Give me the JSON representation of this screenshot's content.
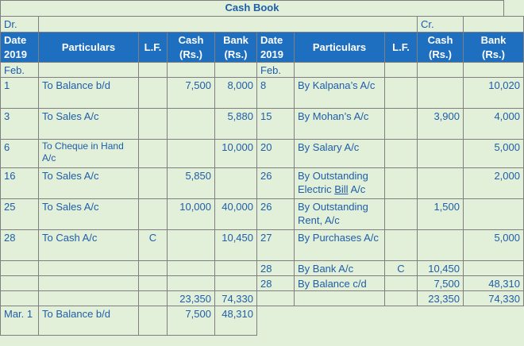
{
  "title": "Cash Book",
  "dr": "Dr.",
  "cr": "Cr.",
  "headers": {
    "date": "Date",
    "year": "2019",
    "particulars": "Particulars",
    "lf": "L.F.",
    "cash": "Cash",
    "bank": "Bank",
    "unit": "(Rs.)"
  },
  "month_start": "Feb.",
  "rows": [
    {
      "d1": "1",
      "p1": "To Balance b/d",
      "lf1": "",
      "c1": "7,500",
      "b1": "8,000",
      "d2": "8",
      "p2": "By Kalpana’s A/c",
      "lf2": "",
      "c2": "",
      "b2": "10,020"
    },
    {
      "d1": "3",
      "p1": "To Sales A/c",
      "lf1": "",
      "c1": "",
      "b1": "5,880",
      "d2": "15",
      "p2": "By Mohan’s A/c",
      "lf2": "",
      "c2": "3,900",
      "b2": "4,000"
    },
    {
      "d1": "6",
      "p1": "To Cheque in Hand A/c",
      "lf1": "",
      "c1": "",
      "b1": "10,000",
      "d2": "20",
      "p2": "By Salary A/c",
      "lf2": "",
      "c2": "",
      "b2": "5,000"
    },
    {
      "d1": "16",
      "p1": "To Sales A/c",
      "lf1": "",
      "c1": "5,850",
      "b1": "",
      "d2": "26",
      "p2a": "By Outstanding Electric ",
      "p2u": "Bill",
      "p2b": " A/c",
      "lf2": "",
      "c2": "",
      "b2": "2,000"
    },
    {
      "d1": "25",
      "p1": "To Sales A/c",
      "lf1": "",
      "c1": "10,000",
      "b1": "40,000",
      "d2": "26",
      "p2": "By Outstanding Rent, A/c",
      "lf2": "",
      "c2": "1,500",
      "b2": ""
    },
    {
      "d1": "28",
      "p1": "To Cash A/c",
      "lf1": "C",
      "c1": "",
      "b1": "10,450",
      "d2": "27",
      "p2": "By Purchases A/c",
      "lf2": "",
      "c2": "",
      "b2": "5,000"
    },
    {
      "d1": "",
      "p1": "",
      "lf1": "",
      "c1": "",
      "b1": "",
      "d2": "28",
      "p2": "By Bank A/c",
      "lf2": "C",
      "c2": "10,450",
      "b2": ""
    },
    {
      "d1": "",
      "p1": "",
      "lf1": "",
      "c1": "",
      "b1": "",
      "d2": "28",
      "p2": "By Balance c/d",
      "lf2": "",
      "c2": "7,500",
      "b2": "48,310"
    }
  ],
  "totals": {
    "c1": "23,350",
    "b1": "74,330",
    "c2": "23,350",
    "b2": "74,330"
  },
  "closing": {
    "d1": "Mar. 1",
    "p1": "To Balance b/d",
    "c1": "7,500",
    "b1": "48,310"
  }
}
